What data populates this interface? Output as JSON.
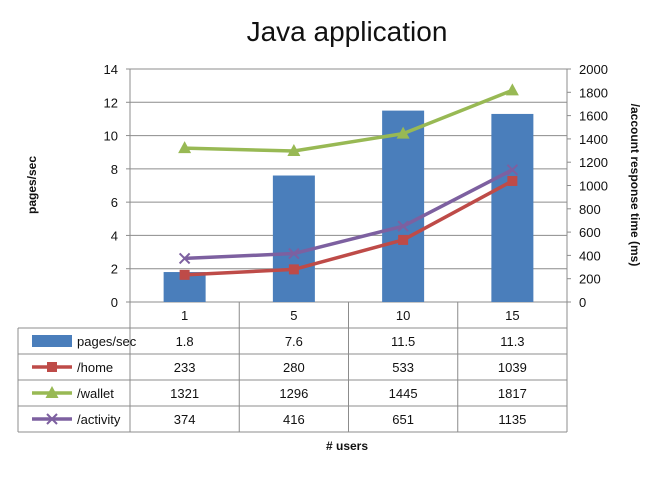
{
  "chart_data": {
    "type": "bar",
    "title": "Java application",
    "xlabel": "# users",
    "ylabel": "pages/sec",
    "y2label": "/account  response time (ms)",
    "categories": [
      "1",
      "5",
      "10",
      "15"
    ],
    "ylim": [
      0,
      14
    ],
    "y2lim": [
      0,
      2000
    ],
    "yticks": [
      "0",
      "2",
      "4",
      "6",
      "8",
      "10",
      "12",
      "14"
    ],
    "y2ticks": [
      "0",
      "200",
      "400",
      "600",
      "800",
      "1000",
      "1200",
      "1400",
      "1600",
      "1800",
      "2000"
    ],
    "grid": true,
    "series": [
      {
        "name": "pages/sec",
        "kind": "bar",
        "axis": "left",
        "color": "#4a7ebb",
        "values": [
          1.8,
          7.6,
          11.5,
          11.3
        ],
        "labels": [
          "1.8",
          "7.6",
          "11.5",
          "11.3"
        ],
        "marker": "rect"
      },
      {
        "name": "/home",
        "kind": "line",
        "axis": "right",
        "color": "#be4b48",
        "values": [
          233,
          280,
          533,
          1039
        ],
        "labels": [
          "233",
          "280",
          "533",
          "1039"
        ],
        "marker": "square"
      },
      {
        "name": "/wallet",
        "kind": "line",
        "axis": "right",
        "color": "#98b954",
        "values": [
          1321,
          1296,
          1445,
          1817
        ],
        "labels": [
          "1321",
          "1296",
          "1445",
          "1817"
        ],
        "marker": "triangle"
      },
      {
        "name": "/activity",
        "kind": "line",
        "axis": "right",
        "color": "#7d60a0",
        "values": [
          374,
          416,
          651,
          1135
        ],
        "labels": [
          "374",
          "416",
          "651",
          "1135"
        ],
        "marker": "x"
      }
    ]
  }
}
